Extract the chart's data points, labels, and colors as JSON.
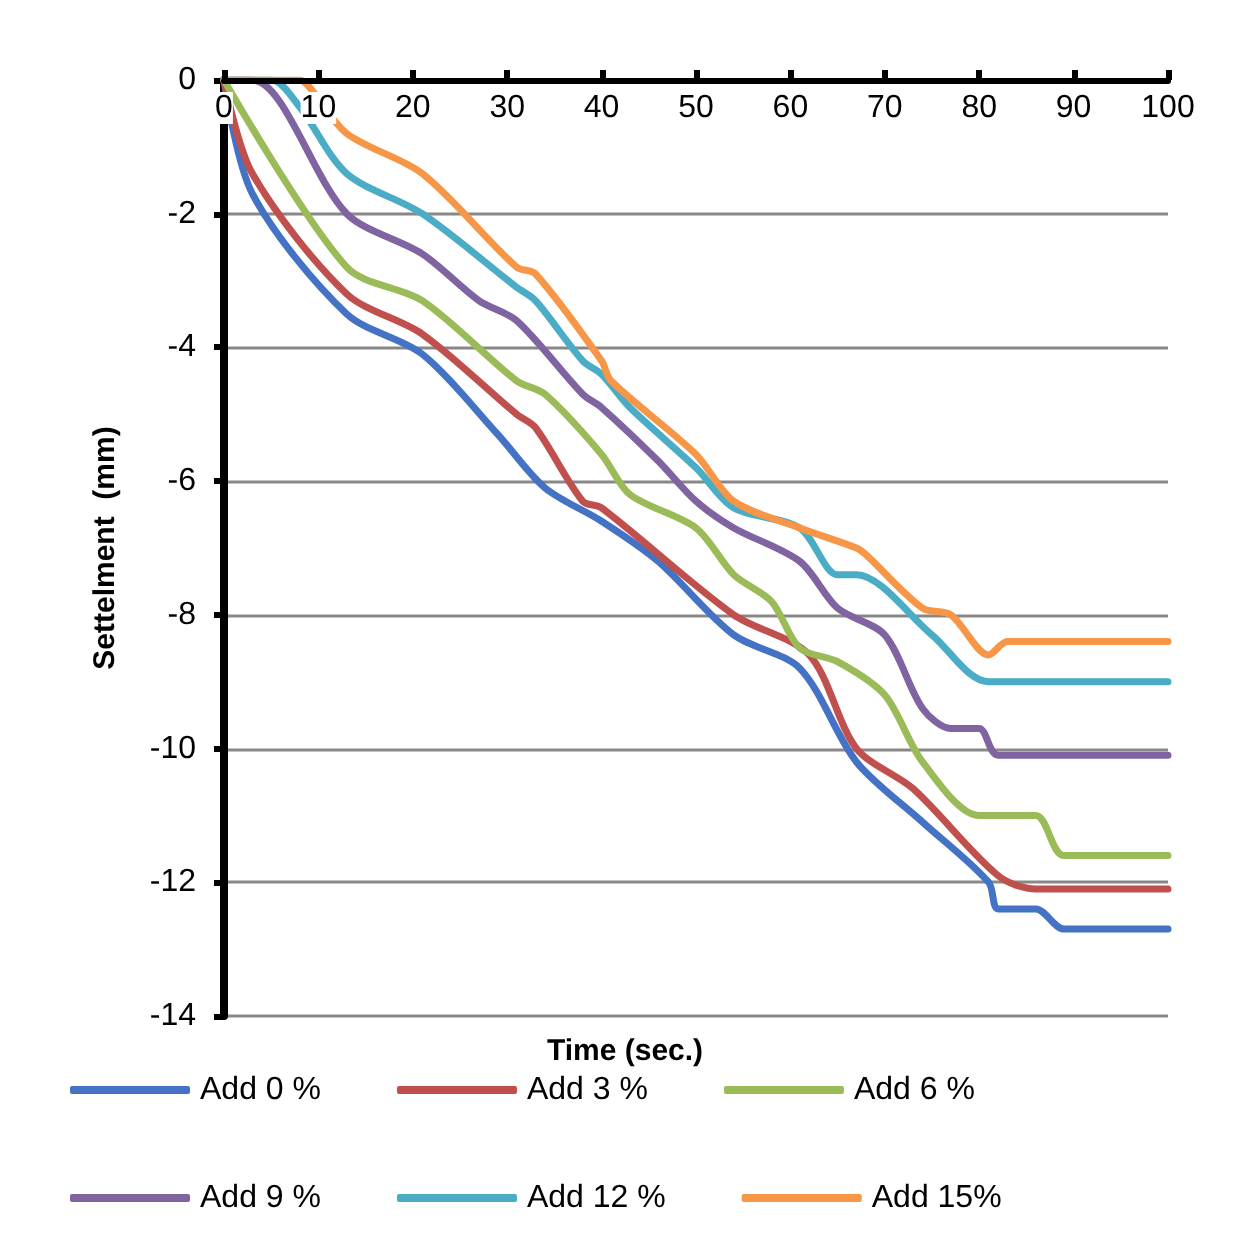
{
  "chart_data": {
    "type": "line",
    "xlabel": "Time (sec.)",
    "ylabel": "Settelment  (mm)",
    "xlim": [
      0,
      100
    ],
    "xticks": [
      0,
      10,
      20,
      30,
      40,
      50,
      60,
      70,
      80,
      90,
      100
    ],
    "ylim": [
      -14,
      0
    ],
    "yticks": [
      -14,
      -12,
      -10,
      -8,
      -6,
      -4,
      -2,
      0
    ],
    "grid": "y",
    "legend": "bottom",
    "marker": "none",
    "line_style": "solid",
    "series": [
      {
        "name": "Add 0 %",
        "color": "#4472c4",
        "x": [
          0,
          3,
          13,
          21,
          29,
          34,
          40,
          46,
          54,
          61,
          67,
          74,
          81,
          82,
          86,
          89,
          100
        ],
        "values": [
          0,
          -1.7,
          -3.5,
          -4.1,
          -5.3,
          -6.1,
          -6.6,
          -7.2,
          -8.3,
          -8.8,
          -10.2,
          -11.1,
          -12.0,
          -12.4,
          -12.4,
          -12.7,
          -12.7
        ]
      },
      {
        "name": "Add 3 %",
        "color": "#c0504d",
        "x": [
          0,
          3,
          13,
          21,
          31,
          33,
          38,
          40,
          54,
          62,
          67,
          73,
          82,
          86,
          100
        ],
        "values": [
          0,
          -1.4,
          -3.2,
          -3.8,
          -5.0,
          -5.2,
          -6.3,
          -6.4,
          -8.0,
          -8.6,
          -10.0,
          -10.6,
          -11.9,
          -12.1,
          -12.1
        ]
      },
      {
        "name": "Add 6 %",
        "color": "#9bbb59",
        "x": [
          0,
          13,
          21,
          31,
          34,
          40,
          43,
          50,
          54,
          58,
          61,
          65,
          70,
          74,
          80,
          86,
          89,
          100
        ],
        "values": [
          0,
          -2.8,
          -3.3,
          -4.5,
          -4.7,
          -5.6,
          -6.2,
          -6.7,
          -7.4,
          -7.8,
          -8.5,
          -8.7,
          -9.2,
          -10.2,
          -11.0,
          -11.0,
          -11.6,
          -11.6
        ]
      },
      {
        "name": "Add 9 %",
        "color": "#8064a2",
        "x": [
          0,
          3,
          13,
          21,
          27,
          31,
          38,
          40,
          46,
          50,
          54,
          61,
          65,
          70,
          74,
          77,
          80,
          82,
          100
        ],
        "values": [
          0,
          0,
          -2.0,
          -2.6,
          -3.3,
          -3.6,
          -4.7,
          -4.9,
          -5.7,
          -6.3,
          -6.7,
          -7.2,
          -7.9,
          -8.3,
          -9.4,
          -9.7,
          -9.7,
          -10.1,
          -10.1
        ]
      },
      {
        "name": "Add 12 %",
        "color": "#4bacc6",
        "x": [
          0,
          5,
          8,
          13,
          21,
          31,
          33,
          38,
          40,
          43,
          50,
          54,
          61,
          65,
          67,
          75,
          81,
          100
        ],
        "values": [
          0,
          0,
          -0.4,
          -1.4,
          -2.0,
          -3.1,
          -3.3,
          -4.2,
          -4.4,
          -4.9,
          -5.8,
          -6.4,
          -6.7,
          -7.4,
          -7.4,
          -8.3,
          -9.0,
          -9.0
        ]
      },
      {
        "name": "Add 15%",
        "color": "#f79646",
        "x": [
          0,
          8,
          9,
          13,
          21,
          31,
          33,
          40,
          41,
          50,
          54,
          61,
          67,
          68,
          74,
          77,
          81,
          83,
          100
        ],
        "values": [
          0,
          0,
          -0.1,
          -0.8,
          -1.4,
          -2.8,
          -2.9,
          -4.2,
          -4.5,
          -5.6,
          -6.3,
          -6.7,
          -7.0,
          -7.1,
          -7.9,
          -8.0,
          -8.6,
          -8.4,
          -8.4
        ]
      }
    ]
  }
}
